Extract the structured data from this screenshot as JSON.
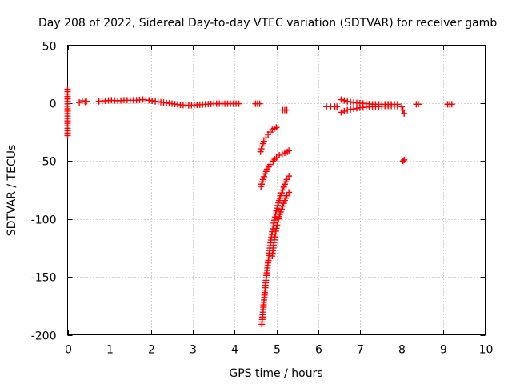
{
  "chart_data": {
    "type": "scatter",
    "title": "Day 208 of 2022, Sidereal Day-to-day VTEC variation (SDTVAR) for receiver gamb",
    "xlabel": "GPS time / hours",
    "ylabel": "SDTVAR / TECUs",
    "xlim": [
      0,
      10
    ],
    "ylim": [
      -200,
      50
    ],
    "xticks": [
      0,
      1,
      2,
      3,
      4,
      5,
      6,
      7,
      8,
      9,
      10
    ],
    "yticks": [
      50,
      0,
      -50,
      -100,
      -150,
      -200
    ],
    "xtick_labels": [
      "0",
      "1",
      "2",
      "3",
      "4",
      "5",
      "6",
      "7",
      "8",
      "9",
      "10"
    ],
    "ytick_labels": [
      "50",
      "0",
      "-50",
      "-100",
      "-150",
      "-200"
    ],
    "grid": true,
    "marker": "+",
    "color": "#ff0000",
    "series": [
      {
        "name": "SDTVAR",
        "segments": [
          {
            "x": [
              0.0,
              0.0
            ],
            "y": [
              12,
              -28
            ]
          },
          {
            "x": [
              0.28,
              0.35,
              0.42,
              0.45
            ],
            "y": [
              0.5,
              2,
              1,
              1.5
            ]
          },
          {
            "x": [
              0.75,
              0.9,
              1.05,
              1.2,
              1.35,
              1.5,
              1.65,
              1.8,
              1.95,
              2.1,
              2.3,
              2.5,
              2.7,
              2.9,
              3.1,
              3.3,
              3.5,
              3.7,
              3.9,
              4.1
            ],
            "y": [
              1.5,
              2,
              2.5,
              2,
              2.5,
              2.5,
              2.5,
              3,
              2.5,
              1.5,
              0.5,
              -0.5,
              -1.5,
              -2,
              -1.5,
              -1,
              -0.5,
              -0.5,
              -0.5,
              -0.5
            ]
          },
          {
            "x": [
              4.5,
              4.55,
              4.6
            ],
            "y": [
              -0.5,
              -0.5,
              -0.5
            ]
          },
          {
            "x": [
              4.62,
              4.66,
              4.7,
              4.75,
              4.8,
              4.85,
              4.9,
              4.95,
              5.0
            ],
            "y": [
              -42,
              -37,
              -33,
              -30,
              -27,
              -25,
              -23,
              -22,
              -21
            ]
          },
          {
            "x": [
              4.63,
              4.68,
              4.73,
              4.78,
              4.85,
              4.92,
              5.0,
              5.07,
              5.14,
              5.2,
              5.26,
              5.3
            ],
            "y": [
              -72,
              -66,
              -61,
              -57,
              -53,
              -50,
              -47,
              -45,
              -44,
              -43,
              -42,
              -41
            ]
          },
          {
            "x": [
              4.65,
              4.7,
              4.75,
              4.8,
              4.85,
              4.9,
              4.95,
              5.0,
              5.05,
              5.1,
              5.15,
              5.2,
              5.25,
              5.3
            ],
            "y": [
              -191,
              -172,
              -153,
              -138,
              -123,
              -111,
              -101,
              -93,
              -86,
              -80,
              -75,
              -70,
              -66,
              -63
            ]
          },
          {
            "x": [
              4.9,
              4.95,
              5.0,
              5.05,
              5.1,
              5.15,
              5.2,
              5.25,
              5.3
            ],
            "y": [
              -132,
              -118,
              -108,
              -100,
              -94,
              -89,
              -84,
              -80,
              -77
            ]
          },
          {
            "x": [
              5.15,
              5.2,
              5.25
            ],
            "y": [
              -6,
              -6,
              -6
            ]
          },
          {
            "x": [
              6.2,
              6.3,
              6.4,
              6.45
            ],
            "y": [
              -3,
              -3,
              -3,
              -3
            ]
          },
          {
            "x": [
              6.55,
              6.7,
              6.85,
              7.0,
              7.15,
              7.3,
              7.45,
              7.6,
              7.75,
              7.9
            ],
            "y": [
              3,
              1.5,
              0.5,
              0,
              -0.5,
              -1,
              -1,
              -1,
              -1,
              -1
            ]
          },
          {
            "x": [
              6.55,
              6.7,
              6.85,
              7.0,
              7.15,
              7.3,
              7.45,
              7.6,
              7.75,
              7.9
            ],
            "y": [
              -8,
              -6,
              -5,
              -4,
              -3.5,
              -3,
              -3,
              -2.5,
              -2.5,
              -2.5
            ]
          },
          {
            "x": [
              8.0,
              8.03,
              8.06
            ],
            "y": [
              -3,
              -6,
              -9
            ]
          },
          {
            "x": [
              8.03,
              8.06
            ],
            "y": [
              -50,
              -49
            ]
          },
          {
            "x": [
              8.35,
              8.4
            ],
            "y": [
              -1,
              -1
            ]
          },
          {
            "x": [
              9.1,
              9.15,
              9.2
            ],
            "y": [
              -1,
              -1,
              -1
            ]
          }
        ]
      }
    ]
  }
}
